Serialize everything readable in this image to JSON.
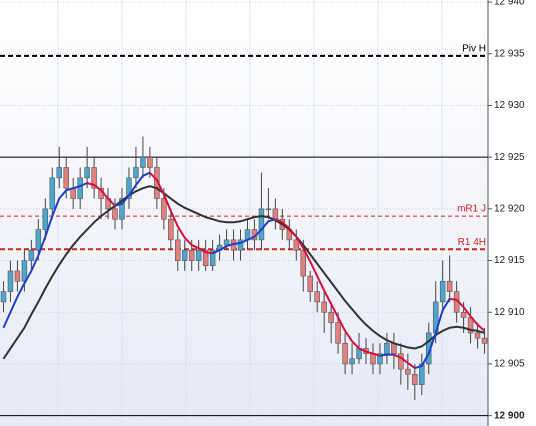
{
  "chart_data": {
    "type": "candlestick",
    "ylim": [
      12899,
      12940.2
    ],
    "yticks": [
      {
        "value": 12900,
        "label": "12 900"
      },
      {
        "value": 12905,
        "label": "12 905"
      },
      {
        "value": 12910,
        "label": "12 910"
      },
      {
        "value": 12915,
        "label": "12 915"
      },
      {
        "value": 12920,
        "label": "12 920"
      },
      {
        "value": 12925,
        "label": "12 925"
      },
      {
        "value": 12930,
        "label": "12 930"
      },
      {
        "value": 12935,
        "label": "12 935"
      },
      {
        "value": 12940,
        "label": "12 940"
      }
    ],
    "grid": true,
    "up_color": "#4fa6cc",
    "down_color": "#e27f7f",
    "open": [
      12911,
      12912,
      12914,
      12913,
      12915,
      12916,
      12918,
      12920,
      12923,
      12924,
      12922,
      12921,
      12923,
      12924,
      12922,
      12921,
      12920,
      12919,
      12921,
      12923,
      12924,
      12925,
      12924,
      12921,
      12919,
      12917,
      12915,
      12916,
      12915,
      12916,
      12914.5,
      12916,
      12916.5,
      12917,
      12916,
      12917,
      12918,
      12917,
      12920,
      12920,
      12919,
      12918,
      12917,
      12916,
      12913.5,
      12912,
      12911,
      12910,
      12909,
      12907,
      12905,
      12905.5,
      12906.5,
      12906,
      12905,
      12906,
      12907,
      12906,
      12904.5,
      12904,
      12903,
      12905,
      12908,
      12911,
      12913,
      12912,
      12910,
      12909.5,
      12908,
      12907.5
    ],
    "high": [
      12913,
      12915,
      12915,
      12916,
      12917,
      12919,
      12921,
      12924,
      12926,
      12925,
      12923,
      12924,
      12926,
      12925,
      12923,
      12922,
      12921,
      12922,
      12924,
      12926,
      12927,
      12926,
      12925,
      12922,
      12920,
      12918,
      12917,
      12917,
      12917,
      12917,
      12917,
      12917.5,
      12918,
      12918,
      12918,
      12919,
      12919,
      12923.5,
      12922,
      12921,
      12920,
      12919,
      12918,
      12917,
      12914,
      12913,
      12912,
      12911,
      12910,
      12908,
      12907,
      12908,
      12907.5,
      12907,
      12907,
      12908,
      12908,
      12907,
      12906,
      12905,
      12906,
      12909,
      12913,
      12915,
      12915.5,
      12913,
      12911,
      12910.5,
      12909,
      12908.5
    ],
    "low": [
      12910,
      12911,
      12912,
      12912,
      12914,
      12915,
      12917,
      12919,
      12922,
      12921,
      12920,
      12920,
      12922,
      12921,
      12919,
      12919,
      12918,
      12918,
      12920,
      12922,
      12923,
      12923,
      12920,
      12918,
      12916,
      12914,
      12914,
      12914,
      12914,
      12914,
      12914,
      12915,
      12916,
      12915,
      12915,
      12916,
      12916,
      12916,
      12919,
      12918,
      12917,
      12916,
      12915,
      12912,
      12911,
      12910,
      12908,
      12907,
      12906,
      12904,
      12904,
      12905,
      12905,
      12904,
      12904,
      12905,
      12904.5,
      12903,
      12902.5,
      12901.5,
      12902,
      12904,
      12907,
      12910,
      12911,
      12909,
      12908,
      12907,
      12906.5,
      12906
    ],
    "close": [
      12912,
      12914,
      12913,
      12915,
      12916,
      12918,
      12920,
      12923,
      12924,
      12922,
      12921,
      12923,
      12924,
      12922,
      12921,
      12920,
      12919,
      12921,
      12923,
      12924,
      12925,
      12924,
      12921,
      12919,
      12917,
      12915,
      12916,
      12915,
      12916,
      12914.5,
      12916,
      12916.5,
      12917,
      12916,
      12917,
      12918,
      12917,
      12920,
      12920,
      12919,
      12918,
      12917,
      12916,
      12913.5,
      12912,
      12911,
      12910,
      12909,
      12907,
      12905,
      12905.5,
      12906.5,
      12906,
      12905,
      12906,
      12907,
      12906,
      12904.5,
      12904,
      12903,
      12905,
      12908,
      12911,
      12913,
      12912,
      12910,
      12909.5,
      12908,
      12907.5,
      12907
    ],
    "fast_ma": {
      "up_color": "#1b3fc6",
      "down_color": "#d4103c",
      "values": [
        12908.5,
        12910,
        12911.5,
        12912.8,
        12914,
        12915.5,
        12917.3,
        12919.3,
        12921,
        12921.8,
        12922,
        12922.2,
        12922.5,
        12922.3,
        12921.8,
        12921,
        12920.3,
        12920.5,
        12921.3,
        12922.3,
        12923.2,
        12923.5,
        12922.8,
        12921.4,
        12919.8,
        12918.3,
        12917.2,
        12916.5,
        12916.2,
        12915.8,
        12915.7,
        12916,
        12916.4,
        12916.6,
        12916.7,
        12917,
        12917.3,
        12918,
        12918.8,
        12919,
        12918.7,
        12918.1,
        12917.3,
        12916.2,
        12914.9,
        12913.5,
        12912.1,
        12910.8,
        12909.5,
        12908.2,
        12907.2,
        12906.5,
        12906.2,
        12906,
        12905.8,
        12905.9,
        12905.9,
        12905.6,
        12905.1,
        12904.6,
        12904.8,
        12906,
        12908,
        12910.2,
        12911.3,
        12911.2,
        12910.5,
        12909.6,
        12908.8,
        12908.2
      ]
    },
    "slow_ma": {
      "color": "#333333",
      "values": [
        12905.5,
        12906.5,
        12907.5,
        12908.5,
        12909.8,
        12911,
        12912.3,
        12913.5,
        12914.6,
        12915.6,
        12916.5,
        12917.3,
        12918,
        12918.7,
        12919.3,
        12919.8,
        12920.3,
        12920.8,
        12921.3,
        12921.7,
        12922,
        12922.2,
        12922,
        12921.5,
        12921,
        12920.5,
        12920.1,
        12919.8,
        12919.5,
        12919.2,
        12919,
        12918.8,
        12918.7,
        12918.7,
        12918.8,
        12919,
        12919.2,
        12919.3,
        12919.2,
        12918.9,
        12918.5,
        12918,
        12917.3,
        12916.5,
        12915.6,
        12914.7,
        12913.8,
        12912.9,
        12912,
        12911.1,
        12910.3,
        12909.5,
        12908.8,
        12908.2,
        12907.7,
        12907.3,
        12907,
        12906.8,
        12906.6,
        12906.5,
        12906.7,
        12907.2,
        12907.8,
        12908.2,
        12908.5,
        12908.6,
        12908.5,
        12908.3,
        12908.2,
        12908
      ]
    },
    "levels": [
      {
        "value": 12934.8,
        "label": "Piv H",
        "color": "#000000",
        "style": "dashed",
        "width": 2
      },
      {
        "value": 12925,
        "color": "#000000",
        "style": "solid",
        "width": 1
      },
      {
        "value": 12919.3,
        "label": "mR1 J",
        "color": "#d42020",
        "style": "dashed",
        "width": 1
      },
      {
        "value": 12916.1,
        "label": "R1 4H",
        "color": "#d42020",
        "style": "dashed",
        "width": 2
      },
      {
        "value": 12900,
        "color": "#000000",
        "style": "solid",
        "width": 1
      }
    ]
  }
}
